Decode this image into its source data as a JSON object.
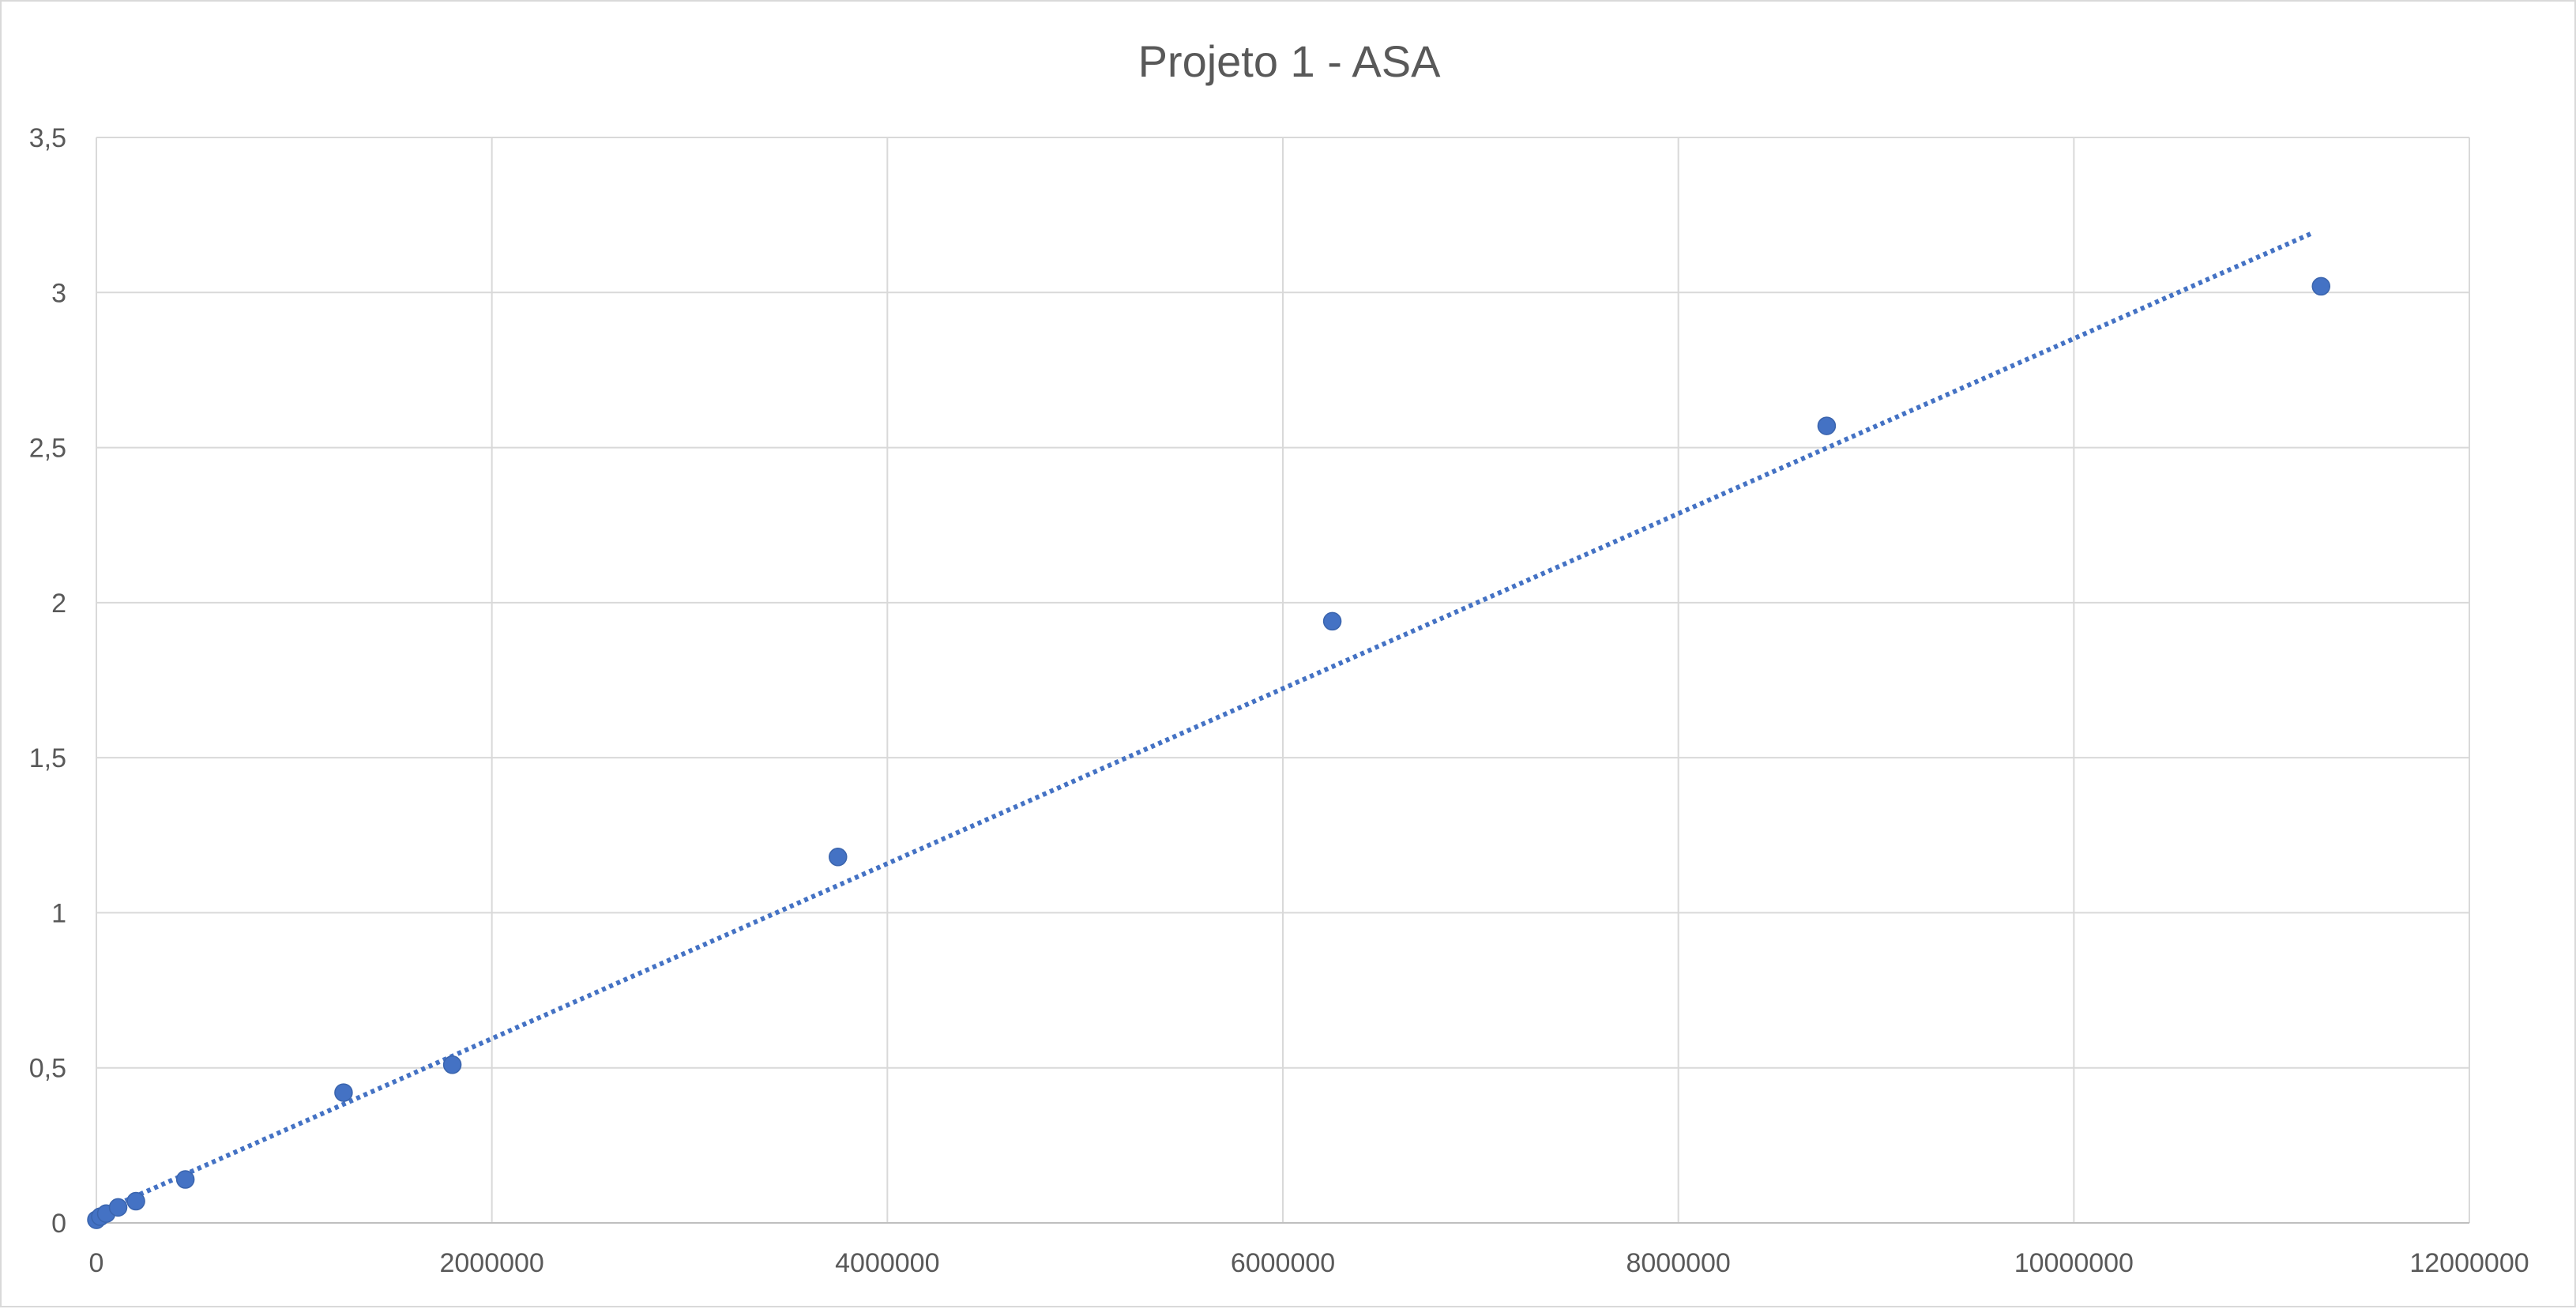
{
  "chart_data": {
    "type": "scatter",
    "title": "Projeto 1 - ASA",
    "xlabel": "",
    "ylabel": "",
    "xlim": [
      0,
      12000000
    ],
    "ylim": [
      0,
      3.5
    ],
    "x_ticks": [
      0,
      2000000,
      4000000,
      6000000,
      8000000,
      10000000,
      12000000
    ],
    "x_tick_labels": [
      "0",
      "2000000",
      "4000000",
      "6000000",
      "8000000",
      "10000000",
      "12000000"
    ],
    "y_ticks": [
      0,
      0.5,
      1,
      1.5,
      2,
      2.5,
      3,
      3.5
    ],
    "y_tick_labels": [
      "0",
      "0,5",
      "1",
      "1,5",
      "2",
      "2,5",
      "3",
      "3,5"
    ],
    "grid": true,
    "legend": "none",
    "series": [
      {
        "marker_color": "#4472c4",
        "points": [
          {
            "x": 0,
            "y": 0.01
          },
          {
            "x": 20000,
            "y": 0.02
          },
          {
            "x": 50000,
            "y": 0.03
          },
          {
            "x": 110000,
            "y": 0.05
          },
          {
            "x": 200000,
            "y": 0.07
          },
          {
            "x": 450000,
            "y": 0.14
          },
          {
            "x": 1250000,
            "y": 0.42
          },
          {
            "x": 1800000,
            "y": 0.51
          },
          {
            "x": 3750000,
            "y": 1.18
          },
          {
            "x": 6250000,
            "y": 1.94
          },
          {
            "x": 8750000,
            "y": 2.57
          },
          {
            "x": 11250000,
            "y": 3.02
          }
        ],
        "trendline": {
          "type": "linear",
          "style": "dotted",
          "color": "#4472c4",
          "x_start": 0,
          "y_start": 0.03,
          "x_end": 11200000,
          "y_end": 3.19
        }
      }
    ]
  }
}
